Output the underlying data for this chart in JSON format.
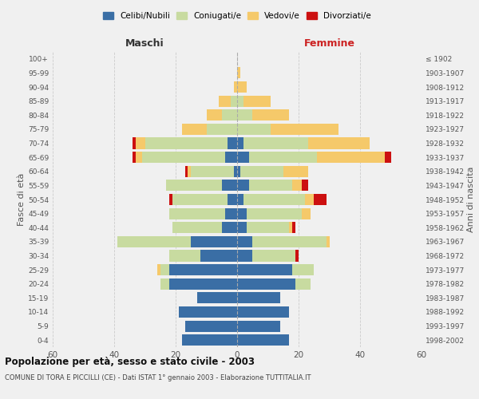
{
  "age_groups": [
    "0-4",
    "5-9",
    "10-14",
    "15-19",
    "20-24",
    "25-29",
    "30-34",
    "35-39",
    "40-44",
    "45-49",
    "50-54",
    "55-59",
    "60-64",
    "65-69",
    "70-74",
    "75-79",
    "80-84",
    "85-89",
    "90-94",
    "95-99",
    "100+"
  ],
  "birth_years": [
    "1998-2002",
    "1993-1997",
    "1988-1992",
    "1983-1987",
    "1978-1982",
    "1973-1977",
    "1968-1972",
    "1963-1967",
    "1958-1962",
    "1953-1957",
    "1948-1952",
    "1943-1947",
    "1938-1942",
    "1933-1937",
    "1928-1932",
    "1923-1927",
    "1918-1922",
    "1913-1917",
    "1908-1912",
    "1903-1907",
    "≤ 1902"
  ],
  "maschi": {
    "celibi": [
      18,
      17,
      19,
      13,
      22,
      22,
      12,
      15,
      5,
      4,
      3,
      5,
      1,
      4,
      3,
      0,
      0,
      0,
      0,
      0,
      0
    ],
    "coniugati": [
      0,
      0,
      0,
      0,
      3,
      3,
      10,
      24,
      16,
      18,
      18,
      18,
      14,
      27,
      27,
      10,
      5,
      2,
      0,
      0,
      0
    ],
    "vedovi": [
      0,
      0,
      0,
      0,
      0,
      1,
      0,
      0,
      0,
      0,
      0,
      0,
      1,
      2,
      3,
      8,
      5,
      4,
      1,
      0,
      0
    ],
    "divorziati": [
      0,
      0,
      0,
      0,
      0,
      0,
      0,
      0,
      0,
      0,
      1,
      0,
      1,
      1,
      1,
      0,
      0,
      0,
      0,
      0,
      0
    ]
  },
  "femmine": {
    "nubili": [
      17,
      14,
      17,
      14,
      19,
      18,
      5,
      5,
      3,
      3,
      2,
      4,
      1,
      4,
      2,
      0,
      0,
      0,
      0,
      0,
      0
    ],
    "coniugate": [
      0,
      0,
      0,
      0,
      5,
      7,
      14,
      24,
      14,
      18,
      20,
      14,
      14,
      22,
      21,
      11,
      5,
      2,
      0,
      0,
      0
    ],
    "vedove": [
      0,
      0,
      0,
      0,
      0,
      0,
      0,
      1,
      1,
      3,
      3,
      3,
      8,
      22,
      20,
      22,
      12,
      9,
      3,
      1,
      0
    ],
    "divorziate": [
      0,
      0,
      0,
      0,
      0,
      0,
      1,
      0,
      1,
      0,
      4,
      2,
      0,
      2,
      0,
      0,
      0,
      0,
      0,
      0,
      0
    ]
  },
  "colors": {
    "celibi_nubili": "#3a6ea5",
    "coniugati": "#c8dba0",
    "vedovi": "#f5c96a",
    "divorziati": "#cc1010"
  },
  "xlim": 60,
  "title": "Popolazione per età, sesso e stato civile - 2003",
  "subtitle": "COMUNE DI TORA E PICCILLI (CE) - Dati ISTAT 1° gennaio 2003 - Elaborazione TUTTITALIA.IT",
  "ylabel_left": "Fasce di età",
  "ylabel_right": "Anni di nascita",
  "xlabel_left": "Maschi",
  "xlabel_right": "Femmine",
  "bg_color": "#f0f0f0",
  "grid_color": "#cccccc"
}
